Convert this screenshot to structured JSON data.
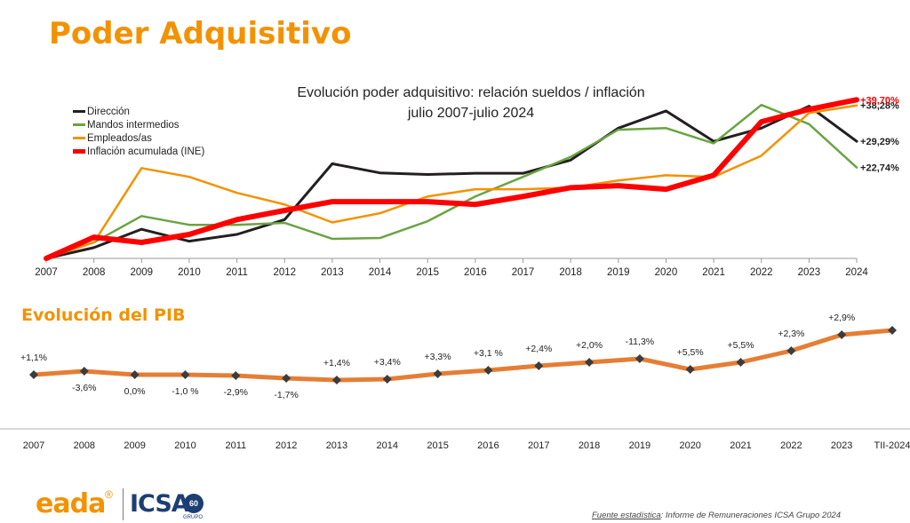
{
  "page": {
    "title": "Poder Adquisitivo",
    "source_label": "Fuente estadística",
    "source_text": ": Informe de Remuneraciones ICSA Grupo 2024",
    "logos": {
      "eada": "eada",
      "eada_mark": "®",
      "icsa": "ICSA",
      "icsa_badge": "60",
      "icsa_sub": "GRUPO"
    }
  },
  "colors": {
    "accent": "#f39200",
    "direccion": "#231f20",
    "mandos": "#6aa442",
    "empleados": "#f39200",
    "inflacion": "#ff0000",
    "pib_line": "#e57e35",
    "pib_marker": "#3c3c3c"
  },
  "chart_data": [
    {
      "type": "line",
      "title": "Evolución poder adquisitivo: relación sueldos / inflación",
      "subtitle": "julio 2007-julio 2024",
      "x": [
        "2007",
        "2008",
        "2009",
        "2010",
        "2011",
        "2012",
        "2013",
        "2014",
        "2015",
        "2016",
        "2017",
        "2018",
        "2019",
        "2020",
        "2021",
        "2022",
        "2023",
        "2024"
      ],
      "ylim": [
        0,
        41
      ],
      "legend_position": "top-left",
      "series": [
        {
          "name": "Dirección",
          "color": "#231f20",
          "values": [
            0,
            2.7,
            7.3,
            4.3,
            6,
            9.7,
            23.7,
            21.4,
            21,
            21.3,
            21.3,
            24.6,
            32.6,
            36.9,
            29.3,
            32.6,
            38.1,
            29.29
          ],
          "end_label": "+29,29%"
        },
        {
          "name": "Mandos intermedios",
          "color": "#6aa442",
          "values": [
            0,
            4,
            10.6,
            8.4,
            8.4,
            8.9,
            4.9,
            5.1,
            9.3,
            15.5,
            20.4,
            25.4,
            32.2,
            32.6,
            28.8,
            38.4,
            33.6,
            22.74
          ],
          "end_label": "+22,74%"
        },
        {
          "name": "Empleados/as",
          "color": "#f39200",
          "values": [
            0,
            4,
            22.6,
            20.4,
            16.4,
            13.5,
            9,
            11.3,
            15.5,
            17.3,
            17.3,
            17.7,
            19.5,
            20.8,
            20.4,
            25.7,
            36.4,
            38.28
          ],
          "end_label": "+38,28%"
        },
        {
          "name": "Inflación acumulada (INE)",
          "color": "#ff0000",
          "values": [
            0,
            5.3,
            4,
            6,
            9.7,
            12,
            14.2,
            14.2,
            14.2,
            13.5,
            15.5,
            17.7,
            18.2,
            17.3,
            20.8,
            34.2,
            37.3,
            39.7
          ],
          "end_label": "+39,70%"
        }
      ]
    },
    {
      "type": "line",
      "title": "Evolución del PIB",
      "x": [
        "2007",
        "2008",
        "2009",
        "2010",
        "2011",
        "2012",
        "2013",
        "2014",
        "2015",
        "2016",
        "2017",
        "2018",
        "2019",
        "2020",
        "2021",
        "2022",
        "2023",
        "TII-2024"
      ],
      "series": [
        {
          "name": "",
          "labels": [
            "+1,1%",
            "-3,6%",
            "0,0%",
            "-1,0 %",
            "-2,9%",
            "-1,7%",
            "+1,4%",
            "+3,4%",
            "+3,3%",
            "+3,1 %",
            "+2,4%",
            "+2,0%",
            "-11,3%",
            "+5,5%",
            "+5,5%",
            "+2,3%",
            "+2,9%",
            ""
          ],
          "label_position": [
            "above",
            "below",
            "below",
            "below",
            "below",
            "below",
            "above",
            "above",
            "above",
            "above",
            "above",
            "above",
            "above",
            "above",
            "above",
            "above",
            "above",
            "none"
          ]
        }
      ]
    }
  ]
}
